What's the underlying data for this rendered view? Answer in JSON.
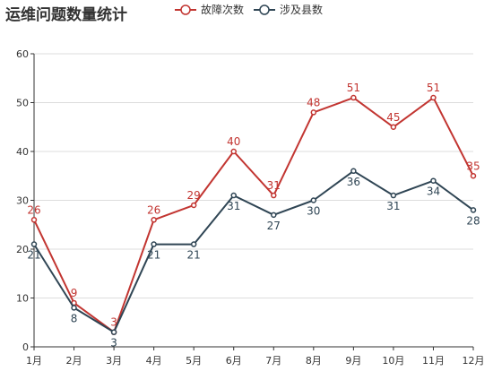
{
  "chart_data": {
    "type": "line",
    "title": "运维问题数量统计",
    "categories": [
      "1月",
      "2月",
      "3月",
      "4月",
      "5月",
      "6月",
      "7月",
      "8月",
      "9月",
      "10月",
      "11月",
      "12月"
    ],
    "ylim": [
      0,
      60
    ],
    "yticks": [
      0,
      10,
      20,
      30,
      40,
      50,
      60
    ],
    "grid": true,
    "legend_position": "top",
    "series": [
      {
        "name": "故障次数",
        "color": "#c23531",
        "label_position": "above",
        "values": [
          26,
          9,
          3,
          26,
          29,
          40,
          31,
          48,
          51,
          45,
          51,
          35
        ]
      },
      {
        "name": "涉及县数",
        "color": "#2f4554",
        "label_position": "below",
        "values": [
          21,
          8,
          3,
          21,
          21,
          31,
          27,
          30,
          36,
          31,
          34,
          28
        ]
      }
    ]
  }
}
